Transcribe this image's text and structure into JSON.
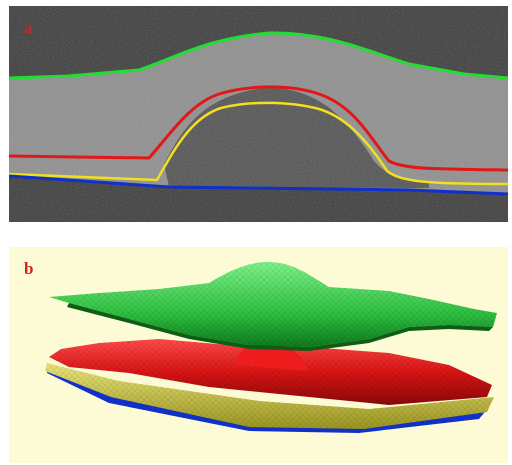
{
  "panels": [
    {
      "label": "a",
      "label_color": "#d42020"
    },
    {
      "label": "b",
      "label_color": "#d42020"
    }
  ],
  "colors": {
    "scan_background": "#3a3a3a",
    "tissue_band": "#8e8e8e",
    "render_background": "#fdfbd6",
    "boundary_top": "#22dd33",
    "boundary_middle": "#e01818",
    "boundary_lower": "#f0e020",
    "boundary_bottom": "#1030c8"
  },
  "icons": {
    "panel_a": "oct-scan-with-segmented-layer-boundaries",
    "panel_b": "3d-rendered-layer-surfaces"
  }
}
